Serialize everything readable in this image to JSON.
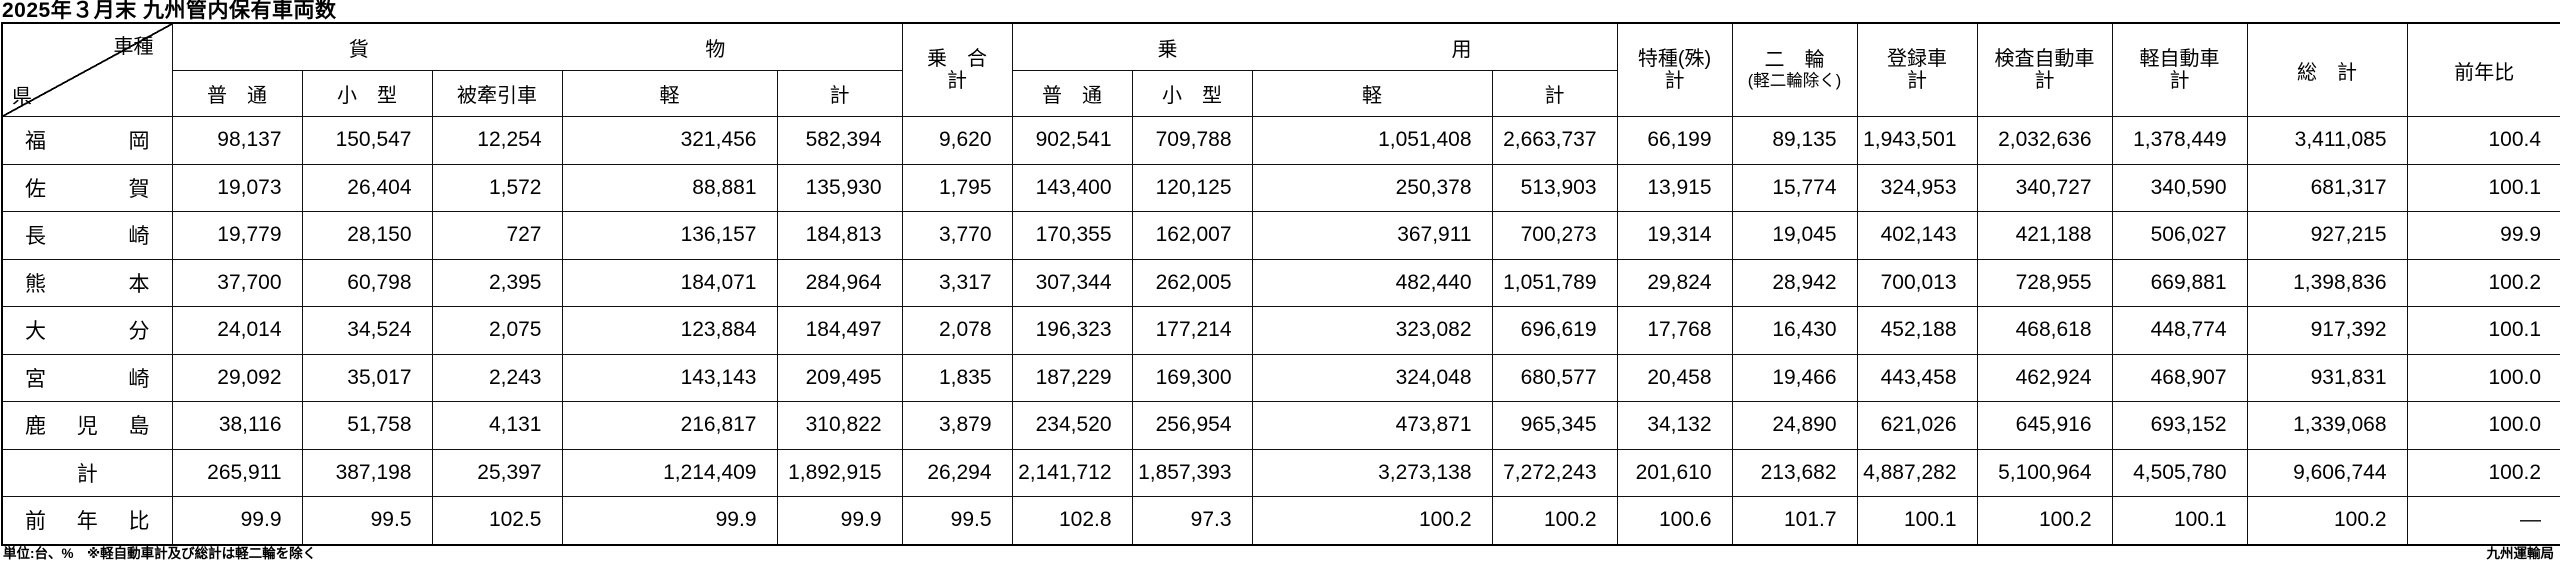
{
  "title": "2025年３月末 九州管内保有車両数",
  "footer": {
    "left": "単位:台、%　※軽自動車計及び総計は軽二輪を除く",
    "right": "九州運輸局"
  },
  "table": {
    "corner": {
      "vehicle_type": "車種",
      "prefecture": "県"
    },
    "header": {
      "cargo_group": "貨物",
      "passenger_group": "乗用",
      "cargo_cols": [
        "普　通",
        "小　型",
        "被牽引車",
        "軽",
        "計"
      ],
      "passenger_cols": [
        "普　通",
        "小　型",
        "軽",
        "計"
      ],
      "bus_total": {
        "l1": "乗　合",
        "l2": "計"
      },
      "special": {
        "l1": "特種(殊)",
        "l2": "計"
      },
      "two_wheel": {
        "l1": "二　輪",
        "l2": "(軽二輪除く)"
      },
      "registered": {
        "l1": "登録車",
        "l2": "計"
      },
      "inspected": {
        "l1": "検査自動車",
        "l2": "計"
      },
      "kei_vehicle": {
        "l1": "軽自動車",
        "l2": "計"
      },
      "grand_total": "総　計",
      "yoy": "前年比"
    },
    "rows": [
      {
        "label": "福岡",
        "values": [
          "98,137",
          "150,547",
          "12,254",
          "321,456",
          "582,394",
          "9,620",
          "902,541",
          "709,788",
          "1,051,408",
          "2,663,737",
          "66,199",
          "89,135",
          "1,943,501",
          "2,032,636",
          "1,378,449",
          "3,411,085",
          "100.4"
        ]
      },
      {
        "label": "佐賀",
        "values": [
          "19,073",
          "26,404",
          "1,572",
          "88,881",
          "135,930",
          "1,795",
          "143,400",
          "120,125",
          "250,378",
          "513,903",
          "13,915",
          "15,774",
          "324,953",
          "340,727",
          "340,590",
          "681,317",
          "100.1"
        ]
      },
      {
        "label": "長崎",
        "values": [
          "19,779",
          "28,150",
          "727",
          "136,157",
          "184,813",
          "3,770",
          "170,355",
          "162,007",
          "367,911",
          "700,273",
          "19,314",
          "19,045",
          "402,143",
          "421,188",
          "506,027",
          "927,215",
          "99.9"
        ]
      },
      {
        "label": "熊本",
        "values": [
          "37,700",
          "60,798",
          "2,395",
          "184,071",
          "284,964",
          "3,317",
          "307,344",
          "262,005",
          "482,440",
          "1,051,789",
          "29,824",
          "28,942",
          "700,013",
          "728,955",
          "669,881",
          "1,398,836",
          "100.2"
        ]
      },
      {
        "label": "大分",
        "values": [
          "24,014",
          "34,524",
          "2,075",
          "123,884",
          "184,497",
          "2,078",
          "196,323",
          "177,214",
          "323,082",
          "696,619",
          "17,768",
          "16,430",
          "452,188",
          "468,618",
          "448,774",
          "917,392",
          "100.1"
        ]
      },
      {
        "label": "宮崎",
        "values": [
          "29,092",
          "35,017",
          "2,243",
          "143,143",
          "209,495",
          "1,835",
          "187,229",
          "169,300",
          "324,048",
          "680,577",
          "20,458",
          "19,466",
          "443,458",
          "462,924",
          "468,907",
          "931,831",
          "100.0"
        ]
      },
      {
        "label": "鹿児島",
        "values": [
          "38,116",
          "51,758",
          "4,131",
          "216,817",
          "310,822",
          "3,879",
          "234,520",
          "256,954",
          "473,871",
          "965,345",
          "34,132",
          "24,890",
          "621,026",
          "645,916",
          "693,152",
          "1,339,068",
          "100.0"
        ]
      },
      {
        "label": "計",
        "values": [
          "265,911",
          "387,198",
          "25,397",
          "1,214,409",
          "1,892,915",
          "26,294",
          "2,141,712",
          "1,857,393",
          "3,273,138",
          "7,272,243",
          "201,610",
          "213,682",
          "4,887,282",
          "5,100,964",
          "4,505,780",
          "9,606,744",
          "100.2"
        ]
      },
      {
        "label": "前年比",
        "values": [
          "99.9",
          "99.5",
          "102.5",
          "99.9",
          "99.9",
          "99.5",
          "102.8",
          "97.3",
          "100.2",
          "100.2",
          "100.6",
          "101.7",
          "100.1",
          "100.2",
          "100.1",
          "100.2",
          "—"
        ]
      }
    ]
  }
}
